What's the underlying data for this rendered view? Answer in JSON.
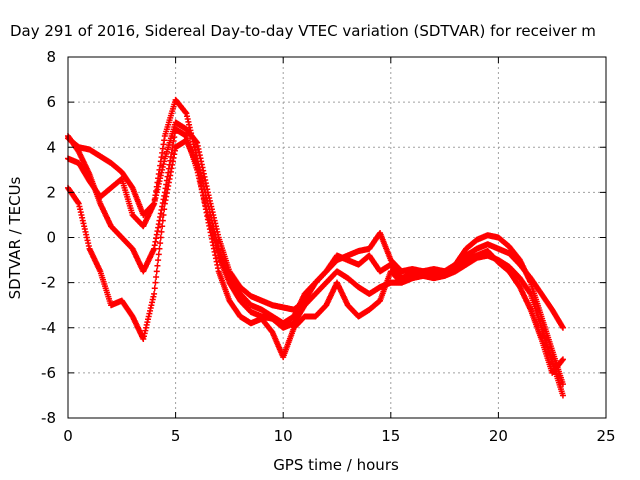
{
  "chart_data": {
    "type": "scatter",
    "title": "Day 291 of 2016, Sidereal Day-to-day VTEC variation (SDTVAR) for receiver m",
    "xlabel": "GPS time / hours",
    "ylabel": "SDTVAR / TECUs",
    "xlim": [
      0,
      25
    ],
    "ylim": [
      -8,
      8
    ],
    "xticks": [
      0,
      5,
      10,
      15,
      20,
      25
    ],
    "yticks": [
      -8,
      -6,
      -4,
      -2,
      0,
      2,
      4,
      6,
      8
    ],
    "grid": true,
    "legend": "none",
    "marker": "plus",
    "color": "#ff0000",
    "series": [
      {
        "x": [
          0,
          0.5,
          1,
          1.5,
          2,
          2.5,
          3,
          3.5,
          4,
          4.5,
          5,
          5.5,
          6,
          6.5,
          7,
          7.5,
          8,
          8.5,
          9,
          9.5,
          10,
          10.5,
          11,
          11.5,
          12,
          12.5,
          13,
          13.5,
          14,
          14.5,
          15,
          15.5,
          16,
          16.5,
          17,
          17.5,
          18,
          18.5,
          19,
          19.5,
          20,
          20.5,
          21,
          21.5,
          22,
          22.5,
          23
        ],
        "y": [
          4.4,
          4.0,
          3.9,
          3.6,
          3.3,
          2.9,
          2.2,
          1.0,
          1.5,
          4.5,
          6.1,
          5.5,
          3.5,
          1.5,
          -0.5,
          -1.8,
          -2.5,
          -3.0,
          -3.2,
          -3.5,
          -3.8,
          -3.5,
          -2.5,
          -2.0,
          -1.5,
          -1.0,
          -0.8,
          -0.6,
          -0.5,
          0.2,
          -1.0,
          -1.5,
          -1.4,
          -1.5,
          -1.4,
          -1.5,
          -1.2,
          -0.5,
          -0.1,
          0.1,
          0.0,
          -0.4,
          -1.0,
          -2.0,
          -3.5,
          -5.0,
          -6.5
        ]
      },
      {
        "x": [
          0,
          0.5,
          1,
          1.5,
          2,
          2.5,
          3,
          3.5,
          4,
          4.5,
          5,
          5.5,
          6,
          6.5,
          7,
          7.5,
          8,
          8.5,
          9,
          9.5,
          10,
          10.5,
          11,
          11.5,
          12,
          12.5,
          13,
          13.5,
          14,
          14.5,
          15,
          15.5,
          16,
          16.5,
          17,
          17.5,
          18,
          18.5,
          19,
          19.5,
          20,
          20.5,
          21,
          21.5,
          22,
          22.5,
          23
        ],
        "y": [
          3.5,
          3.3,
          2.5,
          1.8,
          2.2,
          2.6,
          1.0,
          0.5,
          1.5,
          3.5,
          5.1,
          4.8,
          4.2,
          2.0,
          0.0,
          -1.5,
          -2.2,
          -2.6,
          -2.8,
          -3.0,
          -3.1,
          -3.2,
          -2.8,
          -2.0,
          -1.5,
          -0.8,
          -1.0,
          -1.2,
          -0.8,
          -1.5,
          -1.2,
          -1.8,
          -1.6,
          -1.5,
          -1.6,
          -1.5,
          -1.4,
          -0.8,
          -0.5,
          -0.3,
          -0.5,
          -0.7,
          -1.2,
          -1.8,
          -2.5,
          -3.2,
          -4.0
        ]
      },
      {
        "x": [
          0,
          0.5,
          1,
          1.5,
          2,
          2.5,
          3,
          3.5,
          4,
          4.5,
          5,
          5.5,
          6,
          6.5,
          7,
          7.5,
          8,
          8.5,
          9,
          9.5,
          10,
          10.5,
          11,
          11.5,
          12,
          12.5,
          13,
          13.5,
          14,
          14.5,
          15,
          15.5,
          16,
          16.5,
          17,
          17.5,
          18,
          18.5,
          19,
          19.5,
          20,
          20.5,
          21,
          21.5,
          22,
          22.5,
          23
        ],
        "y": [
          4.5,
          3.8,
          2.8,
          1.5,
          0.5,
          0.0,
          -0.5,
          -1.5,
          -0.5,
          2.0,
          4.8,
          4.5,
          3.0,
          1.0,
          -0.8,
          -2.0,
          -2.8,
          -3.3,
          -3.5,
          -3.6,
          -4.0,
          -3.8,
          -3.0,
          -2.5,
          -2.0,
          -1.5,
          -1.8,
          -2.2,
          -2.5,
          -2.2,
          -2.0,
          -2.0,
          -1.8,
          -1.7,
          -1.8,
          -1.7,
          -1.5,
          -1.2,
          -0.9,
          -0.8,
          -1.0,
          -1.3,
          -1.8,
          -2.5,
          -4.0,
          -5.5,
          -7.0
        ]
      },
      {
        "x": [
          0,
          0.5,
          1,
          1.5,
          2,
          2.5,
          3,
          3.5,
          4,
          4.5,
          5,
          5.5,
          6,
          6.5,
          7,
          7.5,
          8,
          8.5,
          9,
          9.5,
          10,
          10.5,
          11,
          11.5,
          12,
          12.5,
          13,
          13.5,
          14,
          14.5,
          15,
          15.5,
          16,
          16.5,
          17,
          17.5,
          18,
          18.5,
          19,
          19.5,
          20,
          20.5,
          21,
          21.5,
          22,
          22.5,
          23
        ],
        "y": [
          2.2,
          1.5,
          -0.5,
          -1.5,
          -3.0,
          -2.8,
          -3.5,
          -4.5,
          -2.5,
          1.5,
          4.0,
          4.3,
          3.2,
          0.8,
          -1.5,
          -2.8,
          -3.5,
          -3.8,
          -3.6,
          -4.2,
          -5.3,
          -4.0,
          -3.5,
          -3.5,
          -3.0,
          -2.0,
          -3.0,
          -3.5,
          -3.2,
          -2.8,
          -1.5,
          -2.0,
          -1.8,
          -1.5,
          -1.5,
          -1.5,
          -1.4,
          -1.0,
          -0.8,
          -0.6,
          -1.1,
          -1.5,
          -2.2,
          -3.2,
          -4.5,
          -6.0,
          -5.4
        ]
      }
    ]
  }
}
